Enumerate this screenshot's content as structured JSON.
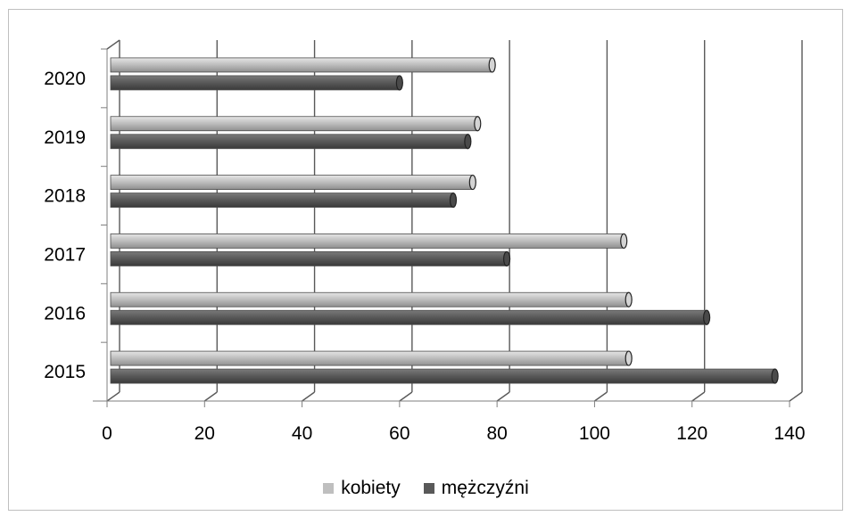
{
  "chart_data": {
    "type": "bar",
    "orientation": "horizontal",
    "title": "",
    "xlabel": "",
    "ylabel": "",
    "categories": [
      "2015",
      "2016",
      "2017",
      "2018",
      "2019",
      "2020"
    ],
    "series": [
      {
        "name": "kobiety",
        "color": "#bfbfbf",
        "values": [
          107,
          107,
          106,
          75,
          76,
          79
        ]
      },
      {
        "name": "mężczyźni",
        "color": "#595959",
        "values": [
          137,
          123,
          82,
          71,
          74,
          60
        ]
      }
    ],
    "xlim": [
      0,
      140
    ],
    "xticks": [
      0,
      20,
      40,
      60,
      80,
      100,
      120,
      140
    ],
    "grid": true,
    "legend_position": "bottom"
  }
}
